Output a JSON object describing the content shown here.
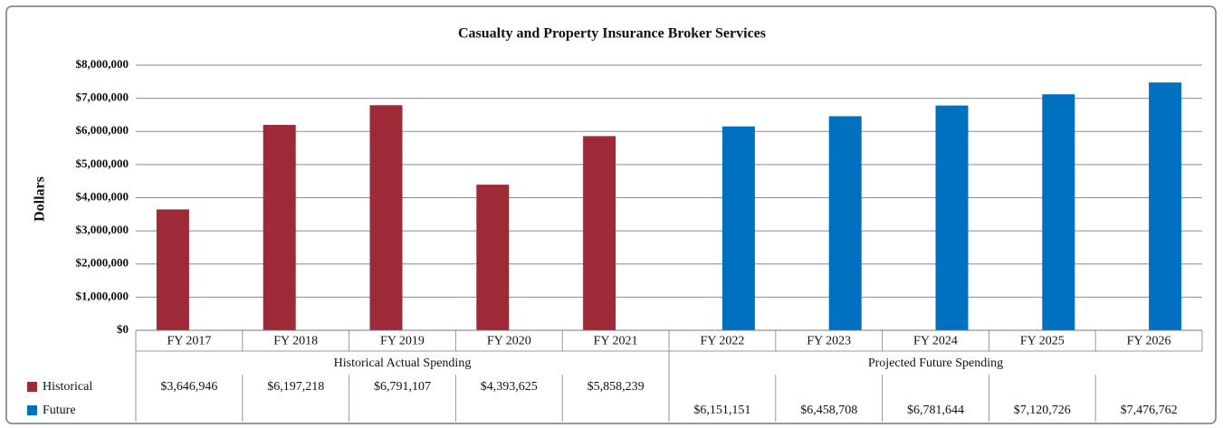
{
  "chart_data": {
    "type": "bar",
    "title": "Casualty and Property Insurance Broker Services",
    "y_label": "Dollars",
    "categories": [
      "FY 2017",
      "FY 2018",
      "FY 2019",
      "FY 2020",
      "FY 2021",
      "FY 2022",
      "FY 2023",
      "FY 2024",
      "FY 2025",
      "FY 2026"
    ],
    "groups": [
      "Historical Actual Spending",
      "Projected Future Spending"
    ],
    "series": [
      {
        "name": "Historical",
        "color": "#9e2a38",
        "values": [
          3646946,
          6197218,
          6791107,
          4393625,
          5858239,
          null,
          null,
          null,
          null,
          null
        ],
        "value_labels": [
          "$3,646,946",
          "$6,197,218",
          "$6,791,107",
          "$4,393,625",
          "$5,858,239",
          null,
          null,
          null,
          null,
          null
        ]
      },
      {
        "name": "Future",
        "color": "#0070c0",
        "values": [
          null,
          null,
          null,
          null,
          null,
          6151151,
          6458708,
          6781644,
          7120726,
          7476762
        ],
        "value_labels": [
          null,
          null,
          null,
          null,
          null,
          "$6,151,151",
          "$6,458,708",
          "$6,781,644",
          "$7,120,726",
          "$7,476,762"
        ]
      }
    ],
    "ylim": [
      0,
      8000000
    ],
    "yticks": [
      {
        "value": 0,
        "label": "$0"
      },
      {
        "value": 1000000,
        "label": "$1,000,000"
      },
      {
        "value": 2000000,
        "label": "$2,000,000"
      },
      {
        "value": 3000000,
        "label": "$3,000,000"
      },
      {
        "value": 4000000,
        "label": "$4,000,000"
      },
      {
        "value": 5000000,
        "label": "$5,000,000"
      },
      {
        "value": 6000000,
        "label": "$6,000,000"
      },
      {
        "value": 7000000,
        "label": "$7,000,000"
      },
      {
        "value": 8000000,
        "label": "$8,000,000"
      }
    ],
    "grid": true
  }
}
